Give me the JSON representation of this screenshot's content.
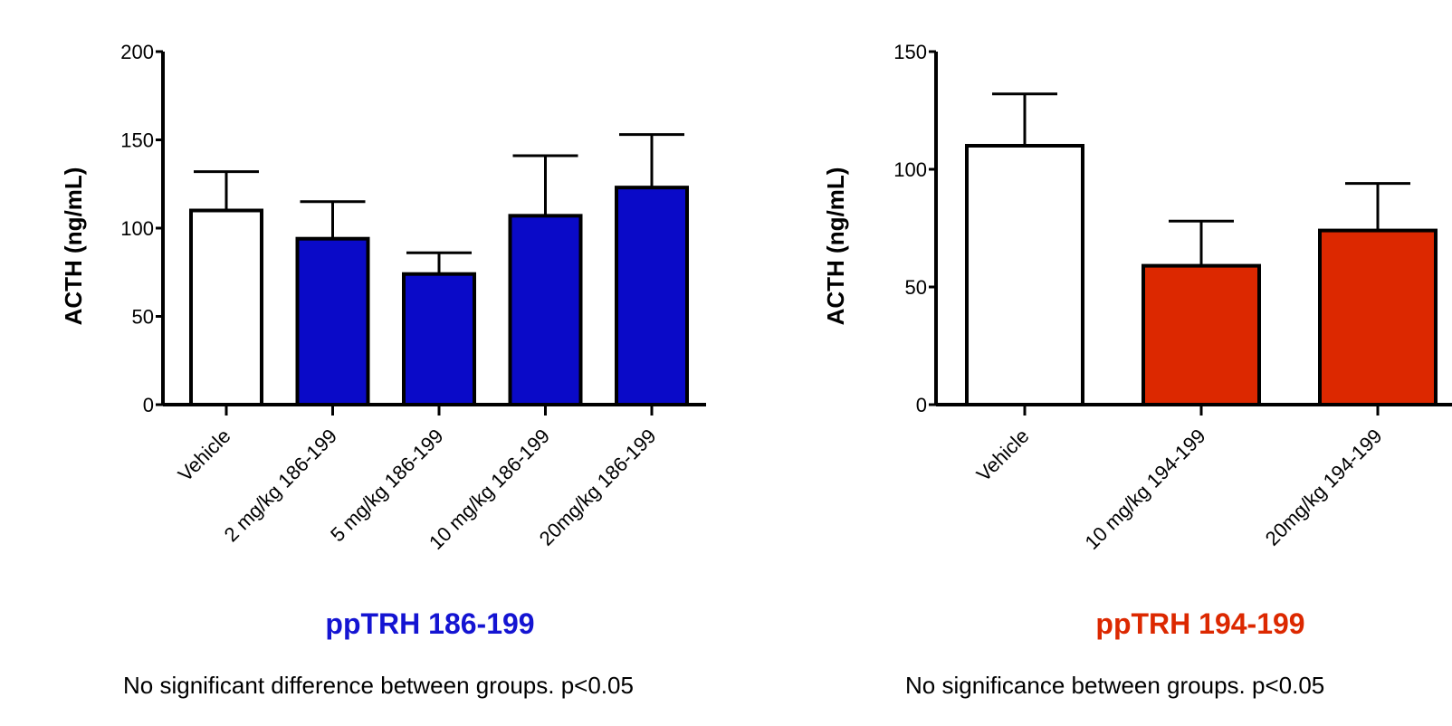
{
  "chart_data": [
    {
      "type": "bar",
      "categories": [
        "Vehicle",
        "2 mg/kg 186-199",
        "5 mg/kg 186-199",
        "10 mg/kg 186-199",
        "20mg/kg 186-199"
      ],
      "values": [
        110,
        94,
        74,
        107,
        123
      ],
      "errors": [
        22,
        21,
        12,
        34,
        30
      ],
      "bar_colors": [
        "#ffffff",
        "#0a0ac8",
        "#0a0ac8",
        "#0a0ac8",
        "#0a0ac8"
      ],
      "ylabel": "ACTH (ng/mL)",
      "ylim": [
        0,
        200
      ],
      "yticks": [
        0,
        50,
        100,
        150,
        200
      ],
      "group_label": "ppTRH 186-199",
      "group_label_color": "#1414d2",
      "note": "No significant difference between groups. p<0.05",
      "grid": false
    },
    {
      "type": "bar",
      "categories": [
        "Vehicle",
        "10 mg/kg 194-199",
        "20mg/kg 194-199"
      ],
      "values": [
        110,
        59,
        74
      ],
      "errors": [
        22,
        19,
        20
      ],
      "bar_colors": [
        "#ffffff",
        "#dc2800",
        "#dc2800"
      ],
      "ylabel": "ACTH (ng/mL)",
      "ylim": [
        0,
        150
      ],
      "yticks": [
        0,
        50,
        100,
        150
      ],
      "group_label": "ppTRH 194-199",
      "group_label_color": "#dc2800",
      "note": "No significance between groups. p<0.05",
      "grid": false
    }
  ]
}
